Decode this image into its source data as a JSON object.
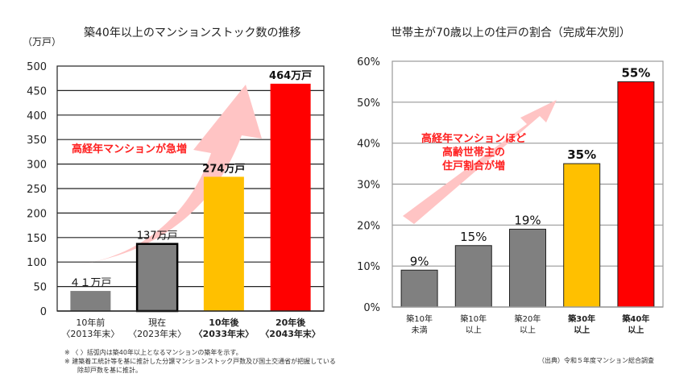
{
  "chart_data": [
    {
      "type": "bar",
      "title": "築40年以上のマンションストック数の推移",
      "ylabel": "（万戸）",
      "xlabel": "",
      "ylim": [
        0,
        500
      ],
      "yticks": [
        0,
        50,
        100,
        150,
        200,
        250,
        300,
        350,
        400,
        450,
        500
      ],
      "ytick_labels": [
        "0",
        "50",
        "100",
        "150",
        "200",
        "250",
        "300",
        "350",
        "400",
        "450",
        "500"
      ],
      "grid": true,
      "categories": [
        {
          "line1": "10年前",
          "line2": "〈2013年末〉",
          "bold": false
        },
        {
          "line1": "現在",
          "line2": "〈2023年末〉",
          "bold": false
        },
        {
          "line1": "10年後",
          "line2": "〈2033年末〉",
          "bold": true
        },
        {
          "line1": "20年後",
          "line2": "〈2043年末〉",
          "bold": true
        }
      ],
      "values": [
        41,
        137,
        274,
        464
      ],
      "data_labels": [
        "４１万戸",
        "137万戸",
        "274万戸",
        "464万戸"
      ],
      "bar_colors": [
        "#808080",
        "#808080",
        "#FFC000",
        "#FF0000"
      ],
      "annotation": "高経年マンションが急増",
      "annotation_color": "#FF2020"
    },
    {
      "type": "bar",
      "title": "世帯主が70歳以上の住戸の割合（完成年次別）",
      "ylabel": "",
      "xlabel": "",
      "ylim": [
        0,
        60
      ],
      "yticks": [
        0,
        10,
        20,
        30,
        40,
        50,
        60
      ],
      "ytick_labels": [
        "0%",
        "10%",
        "20%",
        "30%",
        "40%",
        "50%",
        "60%"
      ],
      "grid": true,
      "categories": [
        {
          "line1": "築10年",
          "line2": "未満",
          "bold": false
        },
        {
          "line1": "築10年",
          "line2": "以上",
          "bold": false
        },
        {
          "line1": "築20年",
          "line2": "以上",
          "bold": false
        },
        {
          "line1": "築30年",
          "line2": "以上",
          "bold": true
        },
        {
          "line1": "築40年",
          "line2": "以上",
          "bold": true
        }
      ],
      "values": [
        9,
        15,
        19,
        35,
        55
      ],
      "data_labels": [
        "9%",
        "15%",
        "19%",
        "35%",
        "55%"
      ],
      "bar_colors": [
        "#808080",
        "#808080",
        "#808080",
        "#FFC000",
        "#FF0000"
      ],
      "annotation_lines": [
        "高経年マンションほど",
        "高齢世帯主の",
        "住戸割合が増"
      ],
      "annotation_color": "#FF2020"
    }
  ],
  "notes": {
    "left": [
      "※ 〈 〉括弧内は築40年以上となるマンションの築年を示す。",
      "※ 建築着工統計等を基に推計した分譲マンションストック戸数及び国土交通省が把握している",
      "　　除却戸数を基に推計。"
    ],
    "right_source": "（出典）令和５年度マンション総合調査"
  },
  "colors": {
    "arrow": "#FFC4C4",
    "gray_bar": "#808080",
    "yellow_bar": "#FFC000",
    "red_bar": "#FF0000"
  }
}
